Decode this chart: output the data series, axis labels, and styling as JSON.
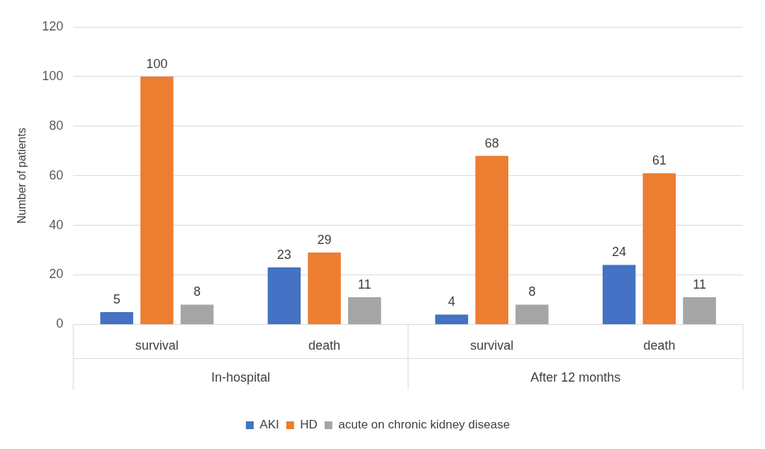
{
  "chart_data": {
    "type": "bar",
    "ylabel": "Number of patients",
    "categories": [
      "survival",
      "death",
      "survival",
      "death"
    ],
    "series": [
      {
        "name": "AKI",
        "color": "#4472c4",
        "values": [
          5,
          23,
          4,
          24
        ]
      },
      {
        "name": "HD",
        "color": "#ed7d31",
        "values": [
          100,
          29,
          68,
          61
        ]
      },
      {
        "name": "acute on chronic kidney disease",
        "color": "#a5a5a5",
        "values": [
          8,
          11,
          8,
          11
        ]
      }
    ],
    "annotations": [
      "In-hospital",
      "After 12 months"
    ],
    "ylim": [
      0,
      120
    ],
    "yticks": [
      0,
      20,
      40,
      60,
      80,
      100,
      120
    ],
    "grid": "y",
    "legend": "bottom",
    "data_labels": true
  }
}
